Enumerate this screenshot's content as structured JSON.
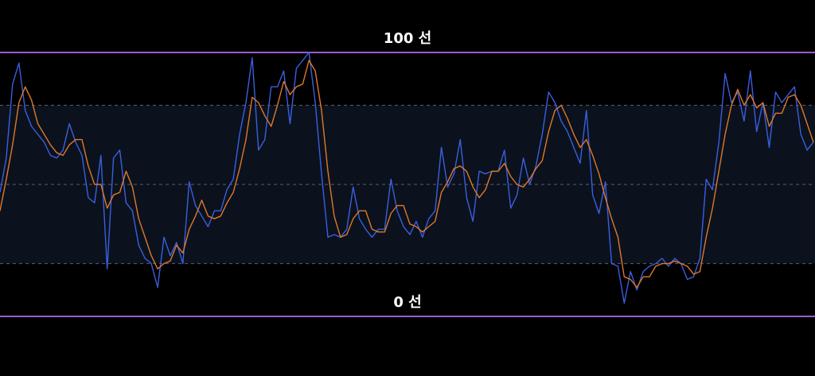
{
  "chart_data": {
    "type": "line",
    "ylim": [
      0,
      100
    ],
    "reference_lines": [
      {
        "value": 100,
        "label": "100 선",
        "color": "#9b5ccf"
      },
      {
        "value": 0,
        "label": "0 선",
        "color": "#9b5ccf"
      }
    ],
    "band": [
      20,
      80
    ],
    "band_color": "#0b121d",
    "dashed_lines": [
      20,
      50,
      80
    ],
    "dashed_color": "#5a6070",
    "series": [
      {
        "color": "#3a5fe0",
        "values": [
          47,
          60,
          88,
          96,
          78,
          72,
          69,
          66,
          61,
          60,
          63,
          73,
          66,
          61,
          45,
          43,
          61,
          18,
          60,
          63,
          43,
          40,
          27,
          22,
          20,
          11,
          30,
          23,
          28,
          20,
          51,
          42,
          38,
          34,
          40,
          40,
          48,
          52,
          69,
          81,
          98,
          63,
          67,
          87,
          87,
          93,
          73,
          94,
          97,
          100,
          81,
          54,
          30,
          31,
          30,
          33,
          49,
          37,
          33,
          30,
          33,
          33,
          52,
          40,
          34,
          31,
          36,
          30,
          37,
          40,
          64,
          49,
          54,
          67,
          45,
          36,
          55,
          54,
          55,
          55,
          63,
          41,
          46,
          60,
          50,
          57,
          69,
          85,
          81,
          74,
          70,
          64,
          58,
          78,
          46,
          39,
          51,
          20,
          19,
          5,
          17,
          10,
          17,
          19,
          20,
          22,
          19,
          22,
          20,
          14,
          15,
          22,
          52,
          48,
          66,
          92,
          81,
          85,
          74,
          93,
          70,
          81,
          64,
          85,
          81,
          84,
          87,
          69,
          63,
          66
        ]
      },
      {
        "color": "#e0782a",
        "values": [
          40,
          52,
          65,
          81,
          87,
          82,
          73,
          69,
          65,
          62,
          61,
          65,
          67,
          67,
          57,
          50,
          50,
          41,
          46,
          47,
          55,
          49,
          37,
          30,
          23,
          18,
          20,
          21,
          27,
          24,
          33,
          38,
          44,
          38,
          37,
          38,
          43,
          47,
          56,
          67,
          83,
          81,
          76,
          72,
          80,
          89,
          84,
          87,
          88,
          97,
          93,
          78,
          55,
          38,
          30,
          31,
          37,
          40,
          40,
          33,
          32,
          32,
          39,
          42,
          42,
          35,
          34,
          32,
          34,
          36,
          47,
          51,
          56,
          57,
          55,
          49,
          45,
          48,
          55,
          55,
          58,
          53,
          50,
          49,
          52,
          56,
          59,
          70,
          78,
          80,
          75,
          69,
          64,
          67,
          61,
          54,
          45,
          37,
          30,
          15,
          14,
          11,
          15,
          15,
          19,
          20,
          20,
          21,
          20,
          19,
          16,
          17,
          30,
          41,
          55,
          69,
          80,
          86,
          80,
          84,
          79,
          81,
          72,
          77,
          77,
          83,
          84,
          80,
          73,
          66
        ]
      }
    ]
  }
}
